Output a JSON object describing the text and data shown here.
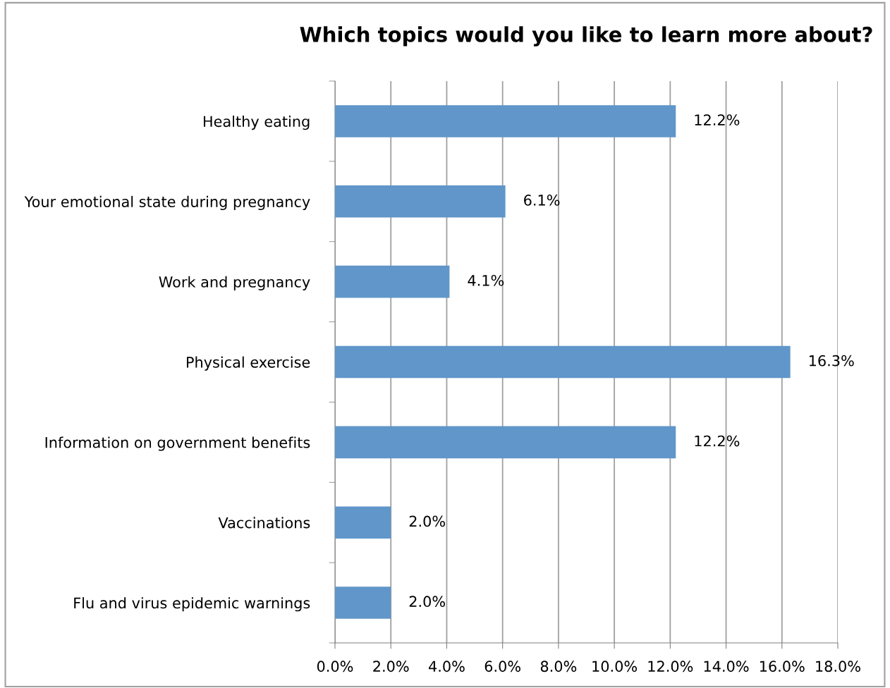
{
  "chart_data": {
    "type": "bar",
    "orientation": "horizontal",
    "title": "Which topics would you like to learn more about?",
    "categories": [
      "Healthy eating",
      "Your emotional state during pregnancy",
      "Work and pregnancy",
      "Physical exercise",
      "Information on government benefits",
      "Vaccinations",
      "Flu and virus epidemic warnings"
    ],
    "values": [
      12.2,
      6.1,
      4.1,
      16.3,
      12.2,
      2.0,
      2.0
    ],
    "value_labels": [
      "12.2%",
      "6.1%",
      "4.1%",
      "16.3%",
      "12.2%",
      "2.0%",
      "2.0%"
    ],
    "color": "#6096c9",
    "xlim": [
      0,
      18
    ],
    "xticks": [
      {
        "value": 0,
        "label": "0.0%"
      },
      {
        "value": 2,
        "label": "2.0%"
      },
      {
        "value": 4,
        "label": "4.0%"
      },
      {
        "value": 6,
        "label": "6.0%"
      },
      {
        "value": 8,
        "label": "8.0%"
      },
      {
        "value": 10,
        "label": "10.0%"
      },
      {
        "value": 12,
        "label": "12.0%"
      },
      {
        "value": 14,
        "label": "14.0%"
      },
      {
        "value": 16,
        "label": "16.0%"
      },
      {
        "value": 18,
        "label": "18.0%"
      }
    ],
    "grid": "x",
    "legend": false
  }
}
